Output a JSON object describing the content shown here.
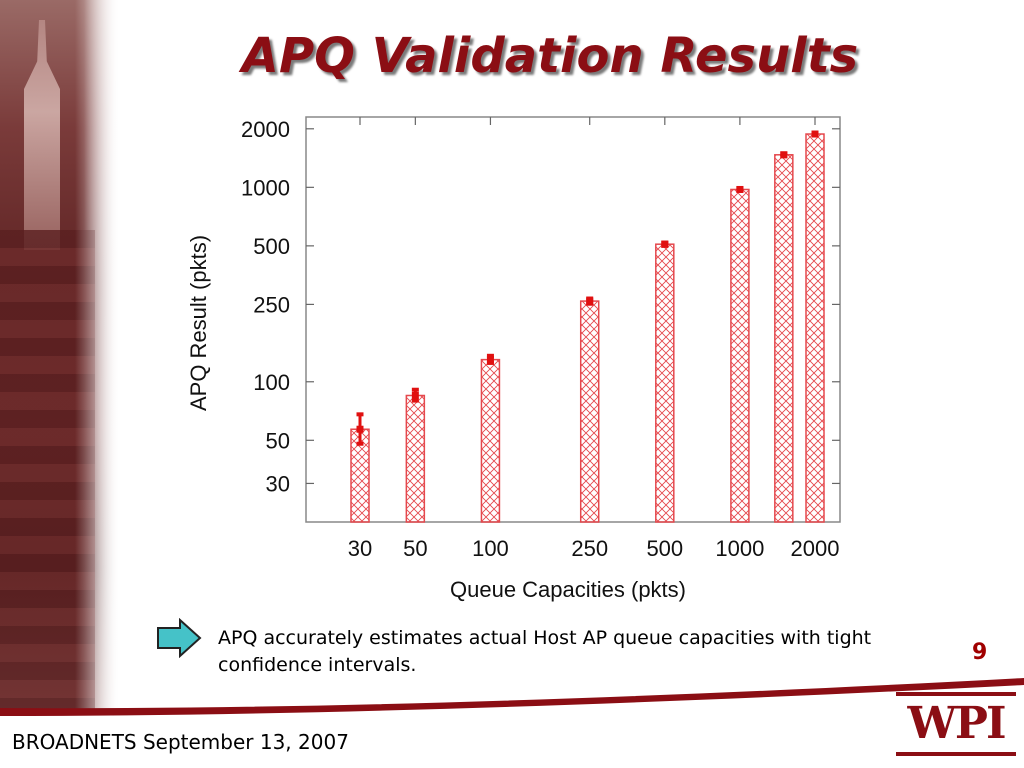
{
  "slide": {
    "title": "APQ Validation Results",
    "bullet": "APQ accurately estimates actual Host AP queue capacities with tight confidence intervals.",
    "page_number": "9",
    "footer": "BROADNETS September 13, 2007",
    "logo_text": "WPI"
  },
  "icons": {
    "arrow": "right-arrow-icon"
  },
  "colors": {
    "title": "#8b0e14",
    "bar": "#e5484d",
    "marker": "#e01010",
    "page_number": "#a00000"
  },
  "chart_data": {
    "type": "bar",
    "title": "",
    "xlabel": "Queue Capacities (pkts)",
    "ylabel": "APQ Result (pkts)",
    "y_scale": "log",
    "ylim": [
      19,
      2300
    ],
    "y_ticks": [
      30,
      50,
      100,
      250,
      500,
      1000,
      2000
    ],
    "x_scale": "log",
    "x_ticks": [
      30,
      50,
      100,
      250,
      500,
      1000,
      2000
    ],
    "categories": [
      30,
      50,
      100,
      250,
      500,
      1000,
      1500,
      2000
    ],
    "values": [
      57,
      85,
      130,
      260,
      510,
      975,
      1470,
      1880
    ],
    "ci_low": [
      48,
      80,
      125,
      252,
      500,
      960,
      1445,
      1850
    ],
    "ci_high": [
      68,
      91,
      136,
      268,
      520,
      990,
      1495,
      1910
    ],
    "grid": false,
    "legend": "none"
  }
}
